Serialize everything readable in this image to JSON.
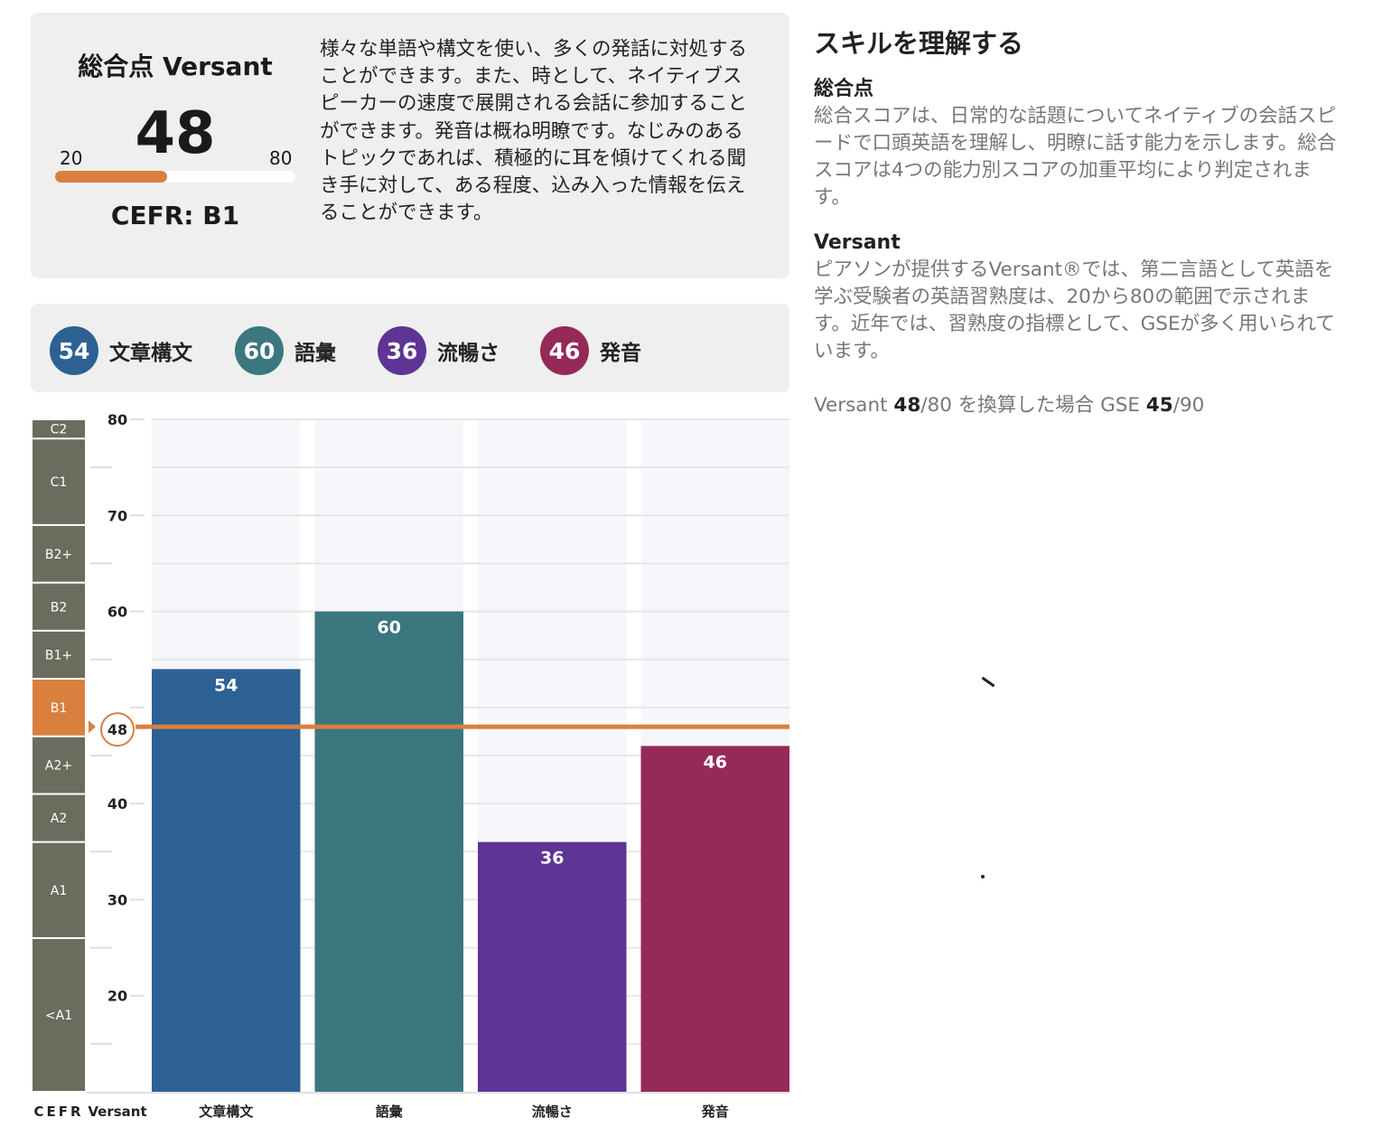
{
  "summary": {
    "title": "総合点 Versant",
    "score": "48",
    "scale_min": "20",
    "scale_max": "80",
    "score_value": 48,
    "scale_range": [
      20,
      80
    ],
    "cefr": "CEFR: B1",
    "description": "様々な単語や構文を使い、多くの発話に対処することができます。また、時として、ネイティブスピーカーの速度で展開される会話に参加することができます。発音は概ね明瞭です。なじみのあるトピックであれば、積極的に耳を傾けてくれる聞き手に対して、ある程度、込み入った情報を伝えることができます。"
  },
  "legend": [
    {
      "score": "54",
      "label": "文章構文",
      "color": "#2d6194"
    },
    {
      "score": "60",
      "label": "語彙",
      "color": "#3b777e"
    },
    {
      "score": "36",
      "label": "流暢さ",
      "color": "#5e3494"
    },
    {
      "score": "46",
      "label": "発音",
      "color": "#952a59"
    }
  ],
  "chart_data": {
    "type": "bar",
    "categories": [
      "文章構文",
      "語彙",
      "流暢さ",
      "発音"
    ],
    "values": [
      54,
      60,
      36,
      46
    ],
    "colors": [
      "#2d6194",
      "#3b777e",
      "#5e3494",
      "#952a59"
    ],
    "ylim": [
      10,
      80
    ],
    "yticks": [
      20,
      30,
      40,
      50,
      60,
      70,
      80
    ],
    "ytick_labels": [
      "20",
      "30",
      "40",
      "",
      "60",
      "70",
      "80"
    ],
    "overall_marker": {
      "value": 48,
      "label": "48",
      "color": "#d9803f"
    },
    "cefr_bands": [
      {
        "label": "C2",
        "from": 78,
        "to": 80
      },
      {
        "label": "C1",
        "from": 69,
        "to": 78
      },
      {
        "label": "B2+",
        "from": 63,
        "to": 69
      },
      {
        "label": "B2",
        "from": 58,
        "to": 63
      },
      {
        "label": "B1+",
        "from": 53,
        "to": 58
      },
      {
        "label": "B1",
        "from": 47,
        "to": 53
      },
      {
        "label": "A2+",
        "from": 41,
        "to": 47
      },
      {
        "label": "A2",
        "from": 36,
        "to": 41
      },
      {
        "label": "A1",
        "from": 26,
        "to": 36
      },
      {
        "label": "<A1",
        "from": 10,
        "to": 26
      }
    ],
    "current_cefr": "B1",
    "band_color": "#6b6b5e",
    "x_labels": {
      "cefr": "CEFR",
      "versant": "Versant"
    }
  },
  "side": {
    "title": "スキルを理解する",
    "overall_heading": "総合点",
    "overall_text": "総合スコアは、日常的な話題についてネイティブの会話スピードで口頭英語を理解し、明瞭に話す能力を示します。総合スコアは4つの能力別スコアの加重平均により判定されます。",
    "versant_heading": "Versant",
    "versant_text": "ピアソンが提供するVersant®では、第二言語として英語を学ぶ受験者の英語習熟度は、20から80の範囲で示されます。近年では、習熟度の指標として、GSEが多く用いられています。",
    "conversion": {
      "prefix": "Versant ",
      "versant_score": "48",
      "versant_max": "/80 を換算した場合 GSE ",
      "gse_score": "45",
      "gse_max": "/90"
    }
  }
}
